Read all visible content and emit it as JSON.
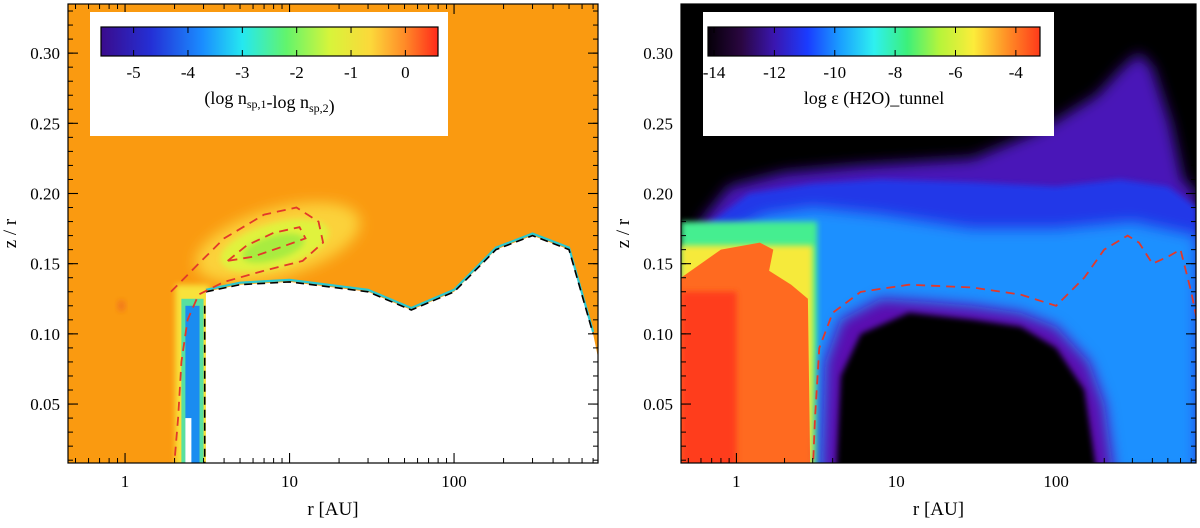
{
  "chart_data": [
    {
      "type": "heatmap",
      "panel": "left",
      "xlabel": "r [AU]",
      "ylabel": "z / r",
      "xscale": "log",
      "xlim": [
        0.45,
        750
      ],
      "ylim": [
        0.008,
        0.335
      ],
      "x_ticks": [
        {
          "value": 1,
          "label": "1"
        },
        {
          "value": 10,
          "label": "10"
        },
        {
          "value": 100,
          "label": "100"
        }
      ],
      "y_ticks": [
        {
          "value": 0.05,
          "label": "0.05"
        },
        {
          "value": 0.1,
          "label": "0.10"
        },
        {
          "value": 0.15,
          "label": "0.15"
        },
        {
          "value": 0.2,
          "label": "0.20"
        },
        {
          "value": 0.25,
          "label": "0.25"
        },
        {
          "value": 0.3,
          "label": "0.30"
        }
      ],
      "colorbar": {
        "label_base": "(log n",
        "label_sub1": "sp,1",
        "label_mid": "-log n",
        "label_sub2": "sp,2",
        "label_end": ")",
        "range": [
          -5.6,
          0.6
        ],
        "ticks": [
          {
            "value": -5,
            "label": "-5"
          },
          {
            "value": -4,
            "label": "-4"
          },
          {
            "value": -3,
            "label": "-3"
          },
          {
            "value": -2,
            "label": "-2"
          },
          {
            "value": -1,
            "label": "-1"
          },
          {
            "value": 0,
            "label": "0"
          }
        ],
        "colormap": "rainbow"
      },
      "background_value": 0,
      "features": [
        {
          "name": "upper-layer-deviation",
          "r_center_au": 8,
          "zr_center": 0.165,
          "min_value": -1.8
        },
        {
          "name": "inner-rim-column",
          "r_range_au": [
            2.2,
            3.0
          ],
          "zr_range": [
            0.0,
            0.13
          ],
          "min_value": -4.5
        }
      ],
      "contour_dashed_color": "#e2382a",
      "masked_region": "white",
      "mask_boundary_zr": [
        [
          2.2,
          0.0
        ],
        [
          2.2,
          0.12
        ],
        [
          3.1,
          0.13
        ],
        [
          5,
          0.135
        ],
        [
          10,
          0.137
        ],
        [
          30,
          0.13
        ],
        [
          55,
          0.117
        ],
        [
          100,
          0.13
        ],
        [
          180,
          0.16
        ],
        [
          300,
          0.17
        ],
        [
          500,
          0.16
        ],
        [
          700,
          0.1
        ]
      ]
    },
    {
      "type": "heatmap",
      "panel": "right",
      "xlabel": "r [AU]",
      "ylabel": "z / r",
      "xscale": "log",
      "xlim": [
        0.45,
        750
      ],
      "ylim": [
        0.008,
        0.335
      ],
      "x_ticks": [
        {
          "value": 1,
          "label": "1"
        },
        {
          "value": 10,
          "label": "10"
        },
        {
          "value": 100,
          "label": "100"
        }
      ],
      "y_ticks": [
        {
          "value": 0.05,
          "label": "0.05"
        },
        {
          "value": 0.1,
          "label": "0.10"
        },
        {
          "value": 0.15,
          "label": "0.15"
        },
        {
          "value": 0.2,
          "label": "0.20"
        },
        {
          "value": 0.25,
          "label": "0.25"
        },
        {
          "value": 0.3,
          "label": "0.30"
        }
      ],
      "colorbar": {
        "label": "log ε (H2O)_tunnel",
        "range": [
          -14.2,
          -3.2
        ],
        "ticks": [
          {
            "value": -14,
            "label": "-14"
          },
          {
            "value": -12,
            "label": "-12"
          },
          {
            "value": -10,
            "label": "-10"
          },
          {
            "value": -8,
            "label": "-8"
          },
          {
            "value": -6,
            "label": "-6"
          },
          {
            "value": -4,
            "label": "-4"
          }
        ],
        "colormap": "rainbow-black"
      },
      "features": [
        {
          "name": "inner-warm-layer",
          "r_range_au": [
            0.45,
            3
          ],
          "zr_range": [
            0.0,
            0.17
          ],
          "value": -4.2
        },
        {
          "name": "upper-atmosphere",
          "r_range_au": [
            0.5,
            750
          ],
          "zr_range": [
            0.12,
            0.33
          ],
          "value": -11.5
        },
        {
          "name": "midplane-interior",
          "r_range_au": [
            10,
            200
          ],
          "zr_range": [
            0.0,
            0.12
          ],
          "value": -14
        }
      ],
      "contour_dashed_color": "#e2382a"
    }
  ]
}
